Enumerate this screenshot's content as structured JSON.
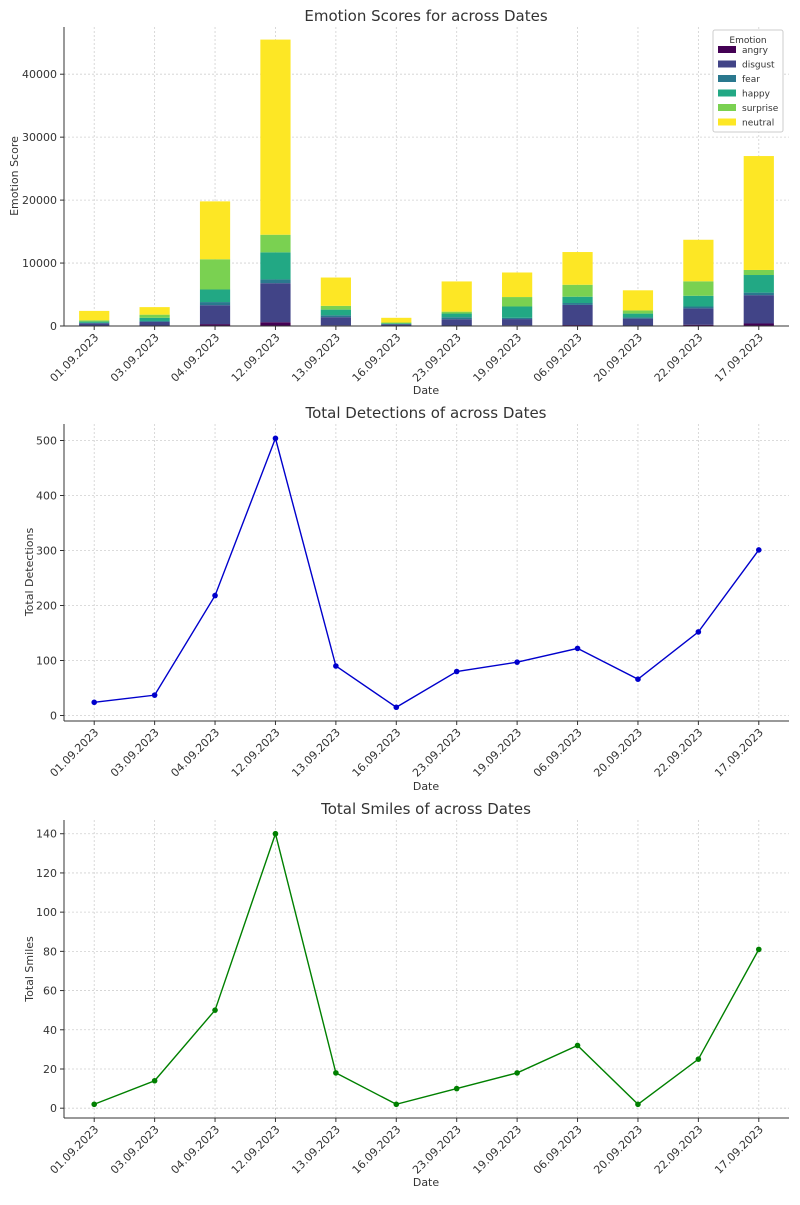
{
  "chart_data": [
    {
      "type": "bar",
      "stacked": true,
      "title": "Emotion Scores for                         across Dates",
      "xlabel": "Date",
      "ylabel": "Emotion Score",
      "ylim": [
        0,
        47500
      ],
      "yticks": [
        0,
        10000,
        20000,
        30000,
        40000
      ],
      "grid": true,
      "legend_position": "top-right",
      "legend_title": "Emotion",
      "categories": [
        "01.09.2023",
        "03.09.2023",
        "04.09.2023",
        "12.09.2023",
        "13.09.2023",
        "16.09.2023",
        "23.09.2023",
        "19.09.2023",
        "06.09.2023",
        "20.09.2023",
        "22.09.2023",
        "17.09.2023"
      ],
      "series": [
        {
          "name": "angry",
          "color": "#440154",
          "values": [
            30,
            50,
            300,
            600,
            100,
            20,
            80,
            100,
            150,
            70,
            200,
            400
          ]
        },
        {
          "name": "disgust",
          "color": "#414487",
          "values": [
            400,
            600,
            3000,
            6200,
            1300,
            250,
            1000,
            1000,
            3200,
            1100,
            2600,
            4500
          ]
        },
        {
          "name": "fear",
          "color": "#2a788e",
          "values": [
            70,
            150,
            500,
            600,
            300,
            50,
            300,
            200,
            300,
            200,
            300,
            400
          ]
        },
        {
          "name": "happy",
          "color": "#22a884",
          "values": [
            200,
            500,
            2000,
            4300,
            900,
            100,
            600,
            1800,
            1000,
            600,
            1700,
            2800
          ]
        },
        {
          "name": "surprise",
          "color": "#7ad151",
          "values": [
            200,
            500,
            4800,
            2800,
            600,
            130,
            300,
            1500,
            1900,
            500,
            2300,
            800
          ]
        },
        {
          "name": "neutral",
          "color": "#fde725",
          "values": [
            1500,
            1200,
            9200,
            31000,
            4500,
            750,
            4800,
            3900,
            5200,
            3200,
            6600,
            18100
          ]
        }
      ]
    },
    {
      "type": "line",
      "title": "Total Detections of                          across Dates",
      "xlabel": "Date",
      "ylabel": "Total Detections",
      "ylim": [
        -10,
        530
      ],
      "yticks": [
        0,
        100,
        200,
        300,
        400,
        500
      ],
      "grid": true,
      "color": "#0000cc",
      "categories": [
        "01.09.2023",
        "03.09.2023",
        "04.09.2023",
        "12.09.2023",
        "13.09.2023",
        "16.09.2023",
        "23.09.2023",
        "19.09.2023",
        "06.09.2023",
        "20.09.2023",
        "22.09.2023",
        "17.09.2023"
      ],
      "values": [
        24,
        37,
        218,
        504,
        90,
        15,
        80,
        97,
        122,
        66,
        152,
        301
      ]
    },
    {
      "type": "line",
      "title": "Total Smiles of                              across Dates",
      "xlabel": "Date",
      "ylabel": "Total Smiles",
      "ylim": [
        -5,
        147
      ],
      "yticks": [
        0,
        20,
        40,
        60,
        80,
        100,
        120,
        140
      ],
      "grid": true,
      "color": "#008000",
      "categories": [
        "01.09.2023",
        "03.09.2023",
        "04.09.2023",
        "12.09.2023",
        "13.09.2023",
        "16.09.2023",
        "23.09.2023",
        "19.09.2023",
        "06.09.2023",
        "20.09.2023",
        "22.09.2023",
        "17.09.2023"
      ],
      "values": [
        2,
        14,
        50,
        140,
        18,
        2,
        10,
        18,
        32,
        2,
        25,
        81
      ]
    }
  ]
}
